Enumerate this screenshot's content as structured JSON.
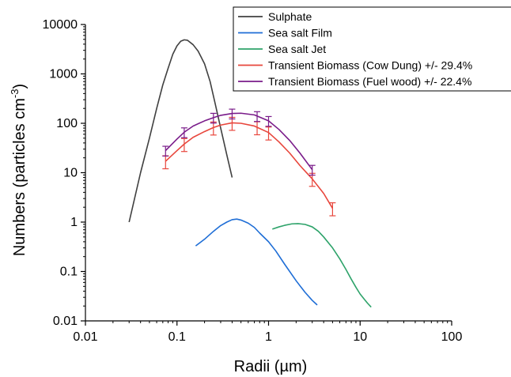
{
  "chart_data": {
    "type": "line",
    "xscale": "log",
    "yscale": "log",
    "xlim": [
      0.01,
      100
    ],
    "ylim": [
      0.01,
      10000
    ],
    "xticks": [
      "0.01",
      "0.1",
      "1",
      "10",
      "100"
    ],
    "yticks": [
      "0.01",
      "0.1",
      "1",
      "10",
      "100",
      "1000",
      "10000"
    ],
    "xlabel": "Radii (µm)",
    "ylabel_main": "Numbers (particles cm",
    "ylabel_sup": "-3",
    "ylabel_close": ")",
    "legend_position": "top-right",
    "series": [
      {
        "name": "Sulphate",
        "color": "#404040",
        "x": [
          0.03,
          0.04,
          0.05,
          0.06,
          0.07,
          0.08,
          0.09,
          0.1,
          0.11,
          0.12,
          0.13,
          0.15,
          0.17,
          0.2,
          0.23,
          0.26,
          0.3,
          0.35,
          0.4
        ],
        "y": [
          1,
          10,
          50,
          200,
          600,
          1300,
          2500,
          3700,
          4600,
          4900,
          4800,
          3900,
          2900,
          1600,
          700,
          260,
          80,
          23,
          8
        ]
      },
      {
        "name": "Sea salt Film",
        "color": "#1f6ed6",
        "x": [
          0.16,
          0.2,
          0.25,
          0.3,
          0.35,
          0.4,
          0.45,
          0.5,
          0.6,
          0.7,
          0.8,
          1,
          1.2,
          1.5,
          2,
          2.5,
          3,
          3.4
        ],
        "y": [
          0.33,
          0.45,
          0.65,
          0.85,
          1.0,
          1.12,
          1.15,
          1.1,
          0.95,
          0.78,
          0.6,
          0.4,
          0.26,
          0.14,
          0.065,
          0.038,
          0.026,
          0.021
        ]
      },
      {
        "name": "Sea salt Jet",
        "color": "#2ea36a",
        "x": [
          1.1,
          1.3,
          1.5,
          1.8,
          2.1,
          2.5,
          3,
          3.5,
          4,
          5,
          6,
          7,
          8,
          9,
          10,
          11,
          12,
          13.2
        ],
        "y": [
          0.72,
          0.8,
          0.86,
          0.92,
          0.93,
          0.9,
          0.8,
          0.65,
          0.5,
          0.3,
          0.18,
          0.11,
          0.07,
          0.048,
          0.035,
          0.028,
          0.023,
          0.019
        ]
      },
      {
        "name": "Transient Biomass (Cow Dung) +/- 29.4%",
        "color": "#e8463c",
        "error_pct": 29.4,
        "x": [
          0.075,
          0.1,
          0.12,
          0.15,
          0.2,
          0.25,
          0.3,
          0.4,
          0.5,
          0.7,
          1,
          1.3,
          1.7,
          2.2,
          3,
          4,
          5
        ],
        "y": [
          17,
          28,
          38,
          52,
          68,
          82,
          92,
          102,
          100,
          88,
          65,
          42,
          25,
          14,
          7.5,
          3.8,
          1.9
        ],
        "error_x": [
          0.075,
          0.12,
          0.25,
          0.4,
          0.75,
          1.0,
          3.0,
          5.0
        ]
      },
      {
        "name": "Transient Biomass (Fuel wood) +/- 22.4%",
        "color": "#7a1c8a",
        "error_pct": 22.4,
        "x": [
          0.075,
          0.1,
          0.12,
          0.15,
          0.2,
          0.25,
          0.3,
          0.4,
          0.5,
          0.7,
          1,
          1.3,
          1.7,
          2.2,
          3
        ],
        "y": [
          28,
          48,
          66,
          88,
          112,
          130,
          145,
          158,
          160,
          148,
          112,
          75,
          45,
          25,
          11.5
        ],
        "error_x": [
          0.075,
          0.12,
          0.25,
          0.4,
          0.75,
          1.0,
          3.0
        ]
      }
    ]
  }
}
